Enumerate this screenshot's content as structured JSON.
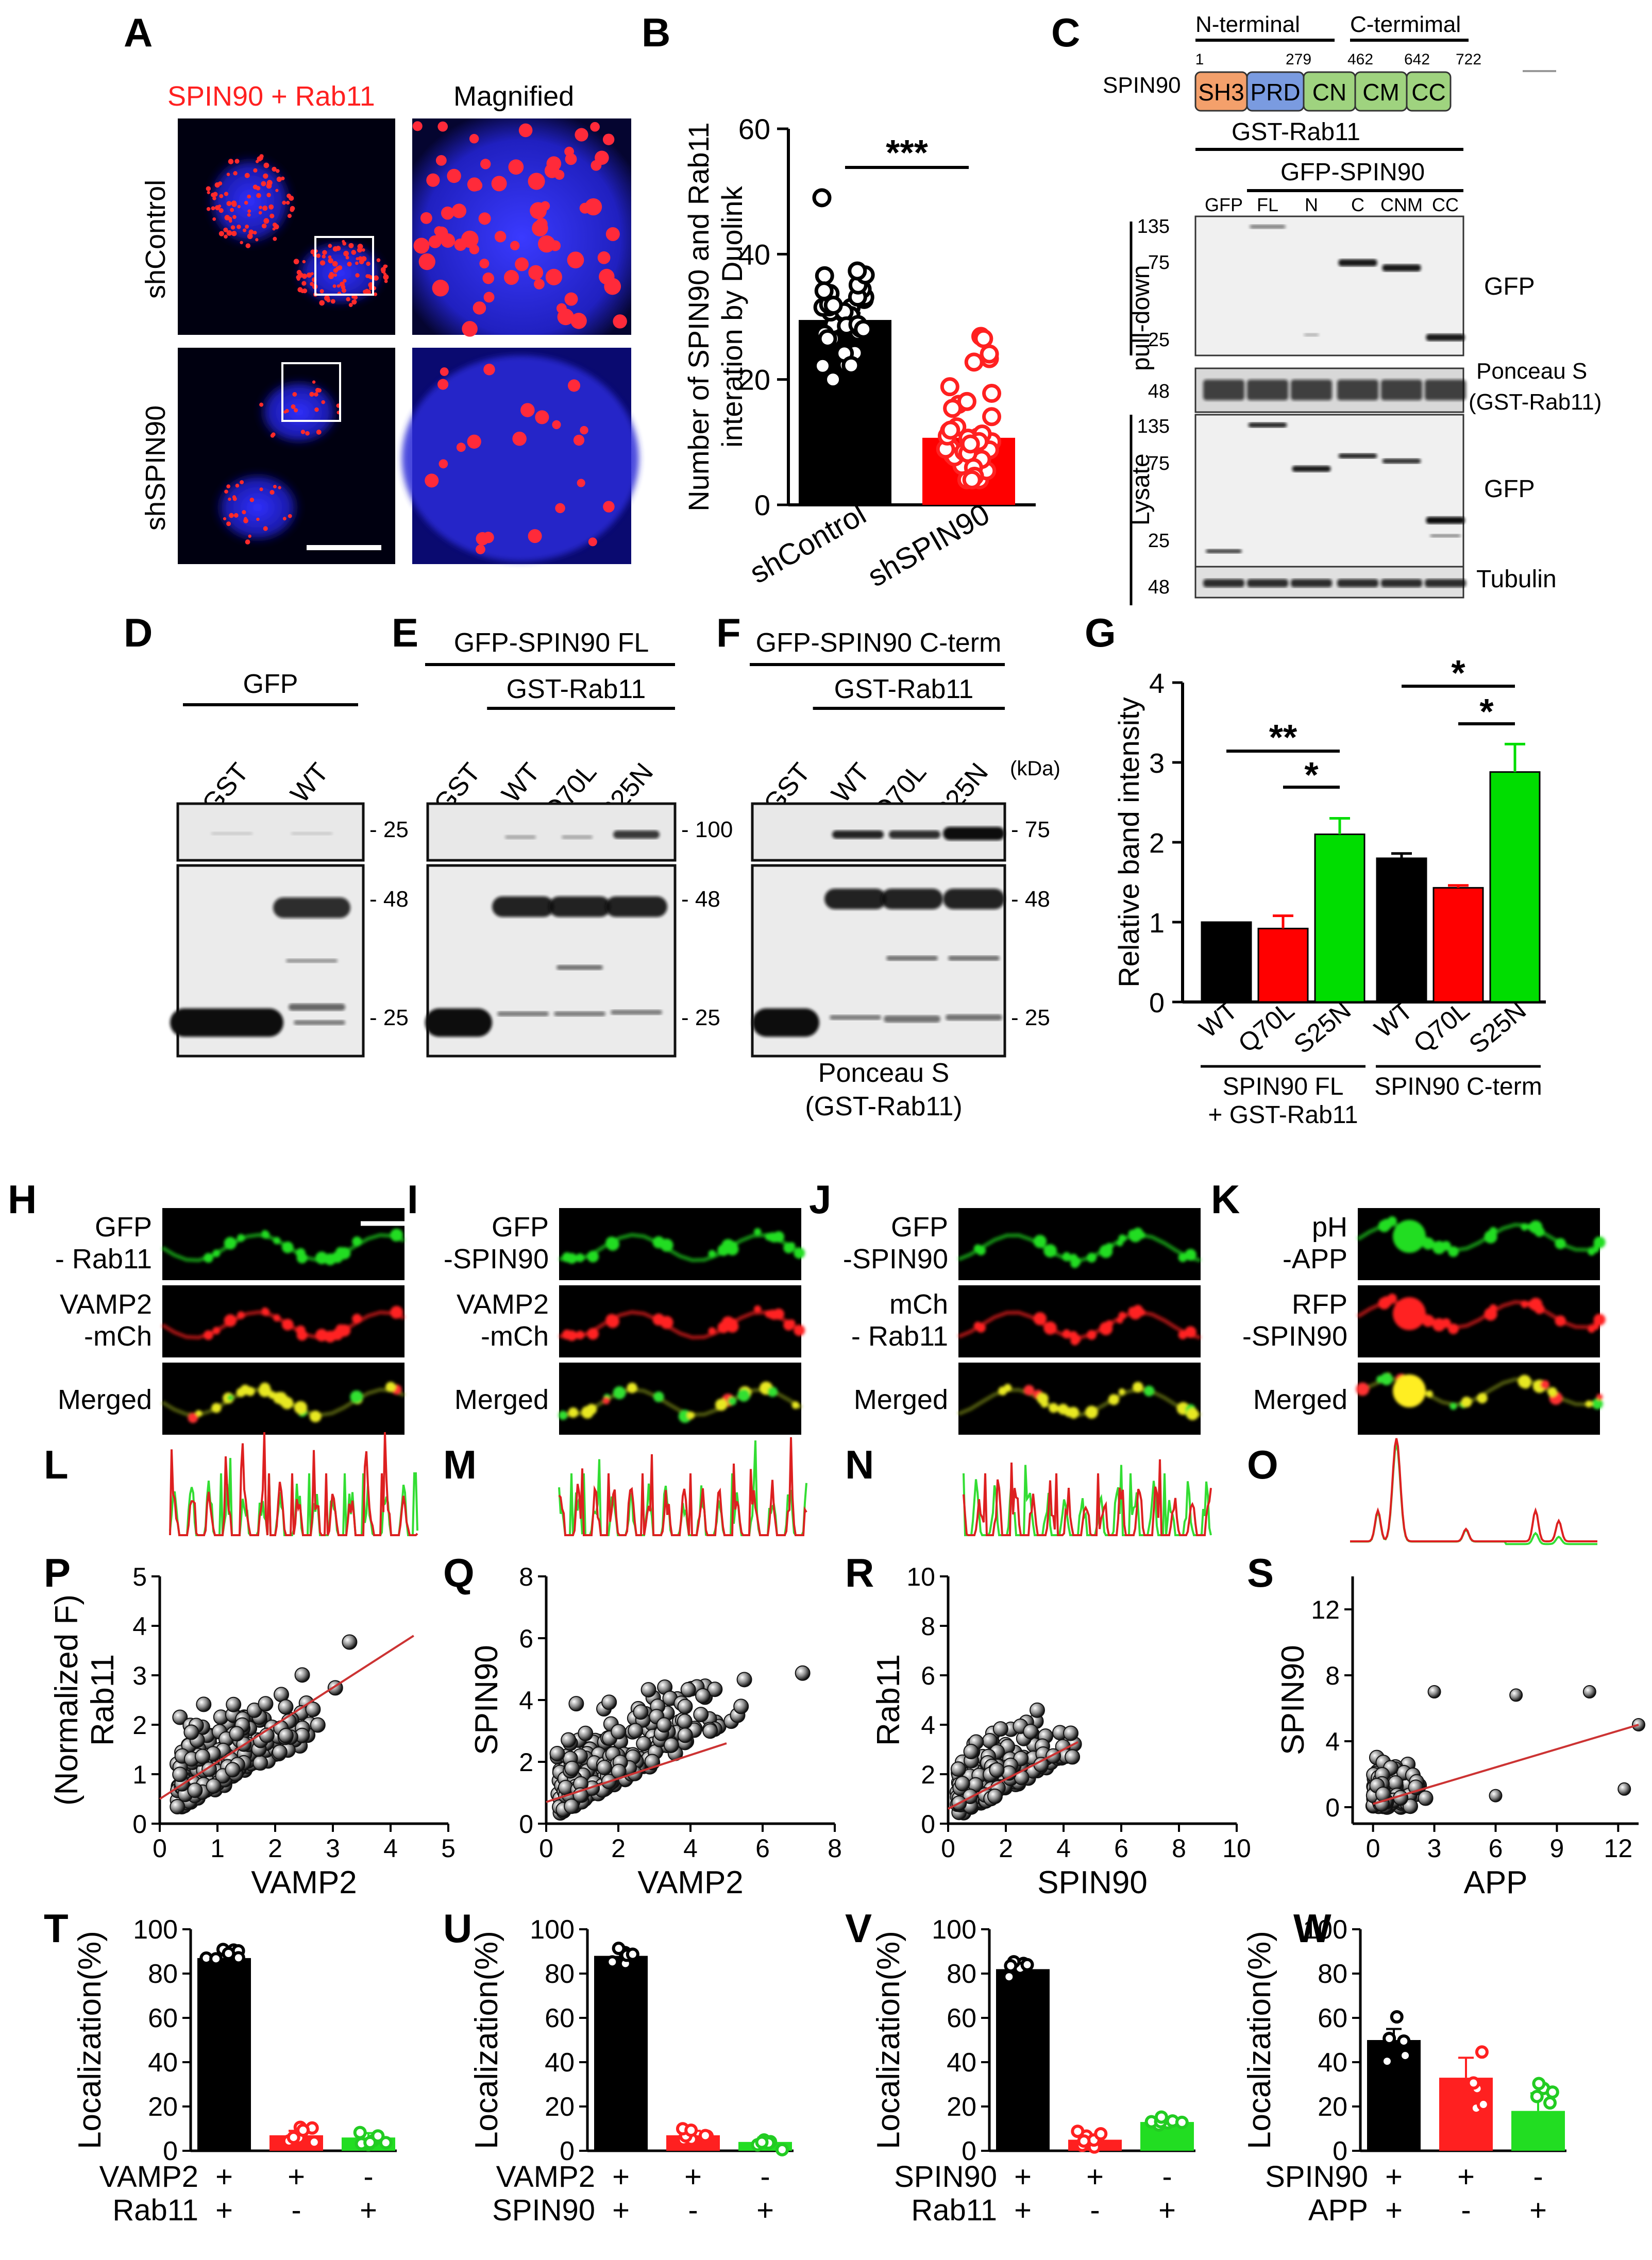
{
  "panels": {
    "A": {
      "letter": "A",
      "title_stain": "SPIN90 + Rab11",
      "title_mag": "Magnified",
      "rows": [
        "shControl",
        "shSPIN90"
      ]
    },
    "B": {
      "letter": "B",
      "ylabel": "Number of SPIN90 and Rab11\ninteration by Duolink",
      "ylim": [
        0,
        60
      ],
      "yticks": [
        0,
        20,
        40,
        60
      ],
      "categories": [
        "shControl",
        "shSPIN90"
      ],
      "means": [
        29.5,
        10.7
      ],
      "colors": [
        "#000000",
        "#ff0000"
      ],
      "sig": "***"
    },
    "C": {
      "letter": "C",
      "n_label": "N-terminal",
      "c_label": "C-termimal",
      "protein": "SPIN90",
      "nums": [
        "1",
        "279",
        "462",
        "642",
        "722"
      ],
      "domains": [
        {
          "name": "SH3",
          "color": "#f4a06b"
        },
        {
          "name": "PRD",
          "color": "#7a9be0"
        },
        {
          "name": "CN",
          "color": "#9fd37f"
        },
        {
          "name": "CM",
          "color": "#9fd37f"
        },
        {
          "name": "CC",
          "color": "#9fd37f"
        }
      ],
      "gst_label": "GST-Rab11",
      "gfp_label": "GFP-SPIN90",
      "lanes": [
        "GFP",
        "FL",
        "N",
        "C",
        "CNM",
        "CC"
      ],
      "pulldown_label": "pull-down",
      "lysate_label": "Lysate",
      "pd_markers": [
        "135",
        "75",
        "25"
      ],
      "ps_marker": "48",
      "lys_markers": [
        "135",
        "75",
        "25"
      ],
      "tub_marker": "48",
      "right_gfp": "GFP",
      "right_ponceau": "Ponceau S\n(GST-Rab11)",
      "right_gfp2": "GFP",
      "right_tubulin": "Tubulin"
    },
    "D": {
      "letter": "D",
      "top": "GFP",
      "lanes": [
        "GST",
        "WT"
      ],
      "gfp": "GFP",
      "m_top": "25",
      "m1": "48",
      "m2": "25"
    },
    "E": {
      "letter": "E",
      "top": "GFP-SPIN90 FL",
      "sub": "GST-Rab11",
      "lanes": [
        "GST",
        "WT",
        "Q70L",
        "S25N"
      ],
      "m_top": "100",
      "m1": "48",
      "m2": "25"
    },
    "F": {
      "letter": "F",
      "top": "GFP-SPIN90 C-term",
      "sub": "GST-Rab11",
      "lanes": [
        "GST",
        "WT",
        "Q70L",
        "S25N"
      ],
      "kda": "(kDa)",
      "m_top": "75",
      "m1": "48",
      "m2": "25",
      "caption": "Ponceau S\n(GST-Rab11)"
    },
    "G": {
      "letter": "G",
      "ylabel": "Relative band intensity",
      "ylim": [
        0,
        4
      ],
      "yticks": [
        0,
        1,
        2,
        3,
        4
      ],
      "categories": [
        "WT",
        "Q70L",
        "S25N",
        "WT",
        "Q70L",
        "S25N"
      ],
      "values": [
        1.0,
        0.92,
        2.1,
        1.8,
        1.43,
        2.88
      ],
      "errors": [
        0.0,
        0.16,
        0.2,
        0.06,
        0.03,
        0.35
      ],
      "colors": [
        "#000000",
        "#ff0000",
        "#00dd00",
        "#000000",
        "#ff0000",
        "#00dd00"
      ],
      "group1": "SPIN90 FL",
      "group2": "SPIN90 C-term",
      "group_note": "+ GST-Rab11",
      "sig": [
        "**",
        "*",
        "*",
        "*"
      ]
    },
    "H": {
      "letter": "H",
      "rows": [
        "GFP\n- Rab11",
        "VAMP2\n-mCh",
        "Merged"
      ]
    },
    "I": {
      "letter": "I",
      "rows": [
        "GFP\n-SPIN90",
        "VAMP2\n-mCh",
        "Merged"
      ]
    },
    "J": {
      "letter": "J",
      "rows": [
        "GFP\n-SPIN90",
        "mCh\n- Rab11",
        "Merged"
      ]
    },
    "K": {
      "letter": "K",
      "rows": [
        "pH\n-APP",
        "RFP\n-SPIN90",
        "Merged"
      ]
    },
    "L": {
      "letter": "L"
    },
    "M": {
      "letter": "M"
    },
    "N": {
      "letter": "N"
    },
    "O": {
      "letter": "O"
    },
    "P": {
      "letter": "P",
      "ylabel": "(Normalized F)\nRab11",
      "xlabel": "VAMP2",
      "xticks": [
        0,
        1,
        2,
        3,
        4,
        5
      ],
      "yticks": [
        0,
        1,
        2,
        3,
        4,
        5
      ],
      "xlim": [
        0,
        5
      ],
      "ylim": [
        0,
        5
      ],
      "fit": [
        [
          0,
          0.5
        ],
        [
          4.4,
          3.8
        ]
      ]
    },
    "Q": {
      "letter": "Q",
      "ylabel": "SPIN90",
      "xlabel": "VAMP2",
      "xticks": [
        0,
        2,
        4,
        6,
        8
      ],
      "yticks": [
        0,
        2,
        4,
        6,
        8
      ],
      "xlim": [
        0,
        8
      ],
      "ylim": [
        0,
        8
      ],
      "fit": [
        [
          0,
          0.7
        ],
        [
          5,
          2.6
        ]
      ]
    },
    "R": {
      "letter": "R",
      "ylabel": "Rab11",
      "xlabel": "SPIN90",
      "xticks": [
        0,
        2,
        4,
        6,
        8,
        10
      ],
      "yticks": [
        0,
        2,
        4,
        6,
        8,
        10
      ],
      "xlim": [
        0,
        10
      ],
      "ylim": [
        0,
        10
      ],
      "fit": [
        [
          0,
          0.6
        ],
        [
          4.5,
          3.3
        ]
      ]
    },
    "S": {
      "letter": "S",
      "ylabel": "SPIN90",
      "xlabel": "APP",
      "xticks": [
        0,
        3,
        6,
        9,
        12
      ],
      "yticks": [
        0,
        4,
        8,
        12
      ],
      "xlim": [
        -1,
        13
      ],
      "ylim": [
        -1,
        14
      ],
      "fit": [
        [
          0,
          0.2
        ],
        [
          13,
          5
        ]
      ]
    },
    "T": {
      "letter": "T",
      "ylabel": "Localization(%)",
      "means": [
        87,
        7,
        6
      ],
      "row1_label": "VAMP2",
      "row1": [
        "+",
        "+",
        "-"
      ],
      "row2_label": "Rab11",
      "row2": [
        "+",
        "-",
        "+"
      ]
    },
    "U": {
      "letter": "U",
      "ylabel": "Localization(%)",
      "means": [
        88,
        7,
        4
      ],
      "row1_label": "VAMP2",
      "row1": [
        "+",
        "+",
        "-"
      ],
      "row2_label": "SPIN90",
      "row2": [
        "+",
        "-",
        "+"
      ]
    },
    "V": {
      "letter": "V",
      "ylabel": "Localization(%)",
      "means": [
        82,
        5,
        13
      ],
      "row1_label": "SPIN90",
      "row1": [
        "+",
        "+",
        "-"
      ],
      "row2_label": "Rab11",
      "row2": [
        "+",
        "-",
        "+"
      ]
    },
    "W": {
      "letter": "W",
      "ylabel": "Localization(%)",
      "means": [
        50,
        33,
        18
      ],
      "row1_label": "SPIN90",
      "row1": [
        "+",
        "+",
        "-"
      ],
      "row2_label": "APP",
      "row2": [
        "+",
        "-",
        "+"
      ]
    }
  },
  "loc_yticks": [
    0,
    20,
    40,
    60,
    80,
    100
  ],
  "chart_data": [
    {
      "type": "bar",
      "panel": "B",
      "categories": [
        "shControl",
        "shSPIN90"
      ],
      "values": [
        29.5,
        10.7
      ],
      "ylim": [
        0,
        60
      ],
      "ylabel": "Number of SPIN90 and Rab11 interation by Duolink",
      "annotations": [
        "***"
      ]
    },
    {
      "type": "bar",
      "panel": "G",
      "categories": [
        "WT",
        "Q70L",
        "S25N",
        "WT",
        "Q70L",
        "S25N"
      ],
      "values": [
        1.0,
        0.92,
        2.1,
        1.8,
        1.43,
        2.88
      ],
      "ylim": [
        0,
        4
      ],
      "ylabel": "Relative band intensity",
      "annotations": [
        "**",
        "*",
        "*",
        "*"
      ]
    },
    {
      "type": "scatter",
      "panel": "P",
      "xlabel": "VAMP2",
      "ylabel": "(Normalized F) Rab11",
      "xlim": [
        0,
        5
      ],
      "ylim": [
        0,
        5
      ]
    },
    {
      "type": "scatter",
      "panel": "Q",
      "xlabel": "VAMP2",
      "ylabel": "SPIN90",
      "xlim": [
        0,
        8
      ],
      "ylim": [
        0,
        8
      ]
    },
    {
      "type": "scatter",
      "panel": "R",
      "xlabel": "SPIN90",
      "ylabel": "Rab11",
      "xlim": [
        0,
        10
      ],
      "ylim": [
        0,
        10
      ]
    },
    {
      "type": "scatter",
      "panel": "S",
      "xlabel": "APP",
      "ylabel": "SPIN90",
      "xlim": [
        -1,
        13
      ],
      "ylim": [
        -1,
        14
      ]
    },
    {
      "type": "bar",
      "panel": "T",
      "values": [
        87,
        7,
        6
      ],
      "ylim": [
        0,
        100
      ],
      "ylabel": "Localization(%)"
    },
    {
      "type": "bar",
      "panel": "U",
      "values": [
        88,
        7,
        4
      ],
      "ylim": [
        0,
        100
      ],
      "ylabel": "Localization(%)"
    },
    {
      "type": "bar",
      "panel": "V",
      "values": [
        82,
        5,
        13
      ],
      "ylim": [
        0,
        100
      ],
      "ylabel": "Localization(%)"
    },
    {
      "type": "bar",
      "panel": "W",
      "values": [
        50,
        33,
        18
      ],
      "ylim": [
        0,
        100
      ],
      "ylabel": "Localization(%)"
    }
  ]
}
